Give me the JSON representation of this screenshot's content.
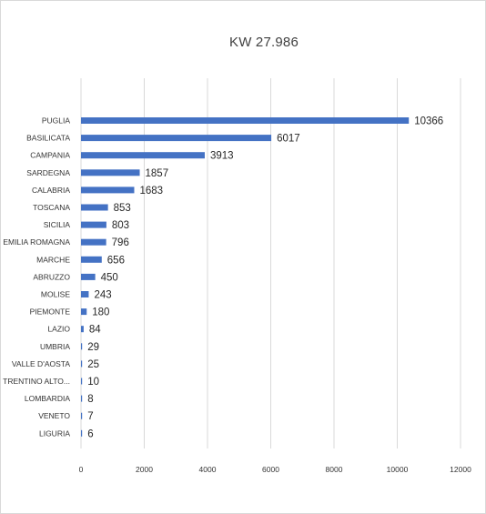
{
  "chart_data": {
    "type": "bar",
    "orientation": "horizontal",
    "title": "KW  27.986",
    "categories": [
      "PUGLIA",
      "BASILICATA",
      "CAMPANIA",
      "SARDEGNA",
      "CALABRIA",
      "TOSCANA",
      "SICILIA",
      "EMILIA ROMAGNA",
      "MARCHE",
      "ABRUZZO",
      "MOLISE",
      "PIEMONTE",
      "LAZIO",
      "UMBRIA",
      "VALLE D'AOSTA",
      "TRENTINO ALTO...",
      "LOMBARDIA",
      "VENETO",
      "LIGURIA"
    ],
    "values": [
      10366,
      6017,
      3913,
      1857,
      1683,
      853,
      803,
      796,
      656,
      450,
      243,
      180,
      84,
      29,
      25,
      10,
      8,
      7,
      6
    ],
    "xlim": [
      0,
      12000
    ],
    "xticks": [
      0,
      2000,
      4000,
      6000,
      8000,
      10000,
      12000
    ],
    "grid": "vertical",
    "bar_color": "#4472c4"
  }
}
